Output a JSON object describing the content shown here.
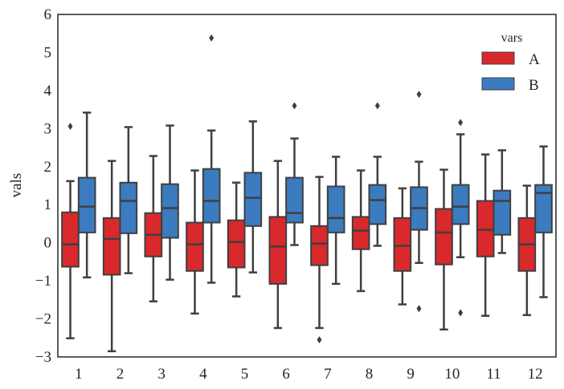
{
  "chart_data": {
    "type": "boxplot",
    "title": "",
    "xlabel": "",
    "ylabel": "vals",
    "ylim": [
      -3,
      6
    ],
    "yticks": [
      "−3",
      "−2",
      "−1",
      "0",
      "1",
      "2",
      "3",
      "4",
      "5",
      "6"
    ],
    "ytick_values": [
      -3,
      -2,
      -1,
      0,
      1,
      2,
      3,
      4,
      5,
      6
    ],
    "categories": [
      "1",
      "2",
      "3",
      "4",
      "5",
      "6",
      "7",
      "8",
      "9",
      "10",
      "11",
      "12"
    ],
    "legend": {
      "title": "vars",
      "placement": "top-right",
      "entries": [
        "A",
        "B"
      ]
    },
    "colors": {
      "A": "#d9292c",
      "B": "#3b7bbf",
      "line": "#3f3f3f"
    },
    "series": [
      {
        "name": "A",
        "boxes": [
          {
            "whislo": -2.51,
            "q1": -0.63,
            "med": -0.04,
            "q3": 0.8,
            "whishi": 1.62,
            "fliers": [
              3.06
            ]
          },
          {
            "whislo": -2.85,
            "q1": -0.84,
            "med": 0.1,
            "q3": 0.65,
            "whishi": 2.15,
            "fliers": []
          },
          {
            "whislo": -1.54,
            "q1": -0.36,
            "med": 0.21,
            "q3": 0.78,
            "whishi": 2.28,
            "fliers": []
          },
          {
            "whislo": -1.86,
            "q1": -0.74,
            "med": -0.04,
            "q3": 0.53,
            "whishi": 1.9,
            "fliers": []
          },
          {
            "whislo": -1.41,
            "q1": -0.65,
            "med": 0.02,
            "q3": 0.59,
            "whishi": 1.58,
            "fliers": []
          },
          {
            "whislo": -2.24,
            "q1": -1.08,
            "med": -0.1,
            "q3": 0.68,
            "whishi": 2.15,
            "fliers": []
          },
          {
            "whislo": -2.24,
            "q1": -0.59,
            "med": -0.02,
            "q3": 0.44,
            "whishi": 1.73,
            "fliers": [
              -2.55
            ]
          },
          {
            "whislo": -1.27,
            "q1": -0.17,
            "med": 0.32,
            "q3": 0.68,
            "whishi": 1.9,
            "fliers": []
          },
          {
            "whislo": -1.62,
            "q1": -0.74,
            "med": -0.08,
            "q3": 0.65,
            "whishi": 1.43,
            "fliers": []
          },
          {
            "whislo": -2.28,
            "q1": -0.57,
            "med": 0.27,
            "q3": 0.89,
            "whishi": 1.92,
            "fliers": []
          },
          {
            "whislo": -1.92,
            "q1": -0.36,
            "med": 0.34,
            "q3": 1.1,
            "whishi": 2.32,
            "fliers": []
          },
          {
            "whislo": -1.9,
            "q1": -0.74,
            "med": -0.04,
            "q3": 0.65,
            "whishi": 1.5,
            "fliers": []
          }
        ]
      },
      {
        "name": "B",
        "boxes": [
          {
            "whislo": -0.91,
            "q1": 0.27,
            "med": 0.95,
            "q3": 1.71,
            "whishi": 3.42,
            "fliers": []
          },
          {
            "whislo": -0.8,
            "q1": 0.25,
            "med": 1.1,
            "q3": 1.58,
            "whishi": 3.04,
            "fliers": []
          },
          {
            "whislo": -0.97,
            "q1": 0.13,
            "med": 0.91,
            "q3": 1.54,
            "whishi": 3.08,
            "fliers": []
          },
          {
            "whislo": -1.05,
            "q1": 0.53,
            "med": 1.1,
            "q3": 1.94,
            "whishi": 2.95,
            "fliers": [
              5.38
            ]
          },
          {
            "whislo": -0.78,
            "q1": 0.44,
            "med": 1.18,
            "q3": 1.84,
            "whishi": 3.19,
            "fliers": []
          },
          {
            "whislo": -0.06,
            "q1": 0.53,
            "med": 0.78,
            "q3": 1.71,
            "whishi": 2.74,
            "fliers": [
              3.6
            ]
          },
          {
            "whislo": -1.08,
            "q1": 0.27,
            "med": 0.65,
            "q3": 1.48,
            "whishi": 2.26,
            "fliers": []
          },
          {
            "whislo": -0.08,
            "q1": 0.49,
            "med": 1.12,
            "q3": 1.52,
            "whishi": 2.26,
            "fliers": [
              3.6
            ]
          },
          {
            "whislo": -0.53,
            "q1": 0.34,
            "med": 0.91,
            "q3": 1.46,
            "whishi": 2.13,
            "fliers": [
              3.9,
              -1.73
            ]
          },
          {
            "whislo": -0.38,
            "q1": 0.49,
            "med": 0.95,
            "q3": 1.52,
            "whishi": 2.85,
            "fliers": [
              3.16,
              -1.84
            ]
          },
          {
            "whislo": -0.27,
            "q1": 0.21,
            "med": 1.1,
            "q3": 1.37,
            "whishi": 2.43,
            "fliers": []
          },
          {
            "whislo": -1.43,
            "q1": 0.27,
            "med": 1.31,
            "q3": 1.52,
            "whishi": 2.53,
            "fliers": []
          }
        ]
      }
    ]
  }
}
